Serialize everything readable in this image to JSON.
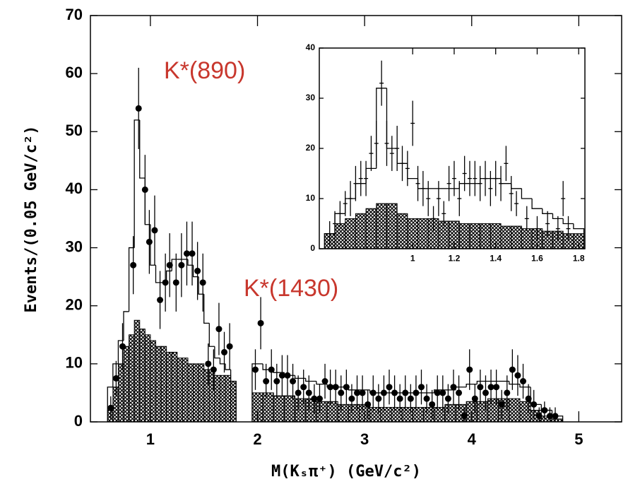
{
  "chart_data": [
    {
      "type": "histogram",
      "x_label": "M(Kₛπ⁺)  (GeV/c²)",
      "y_label": "Events/(0.05 GeV/c²)",
      "annotations": [
        "K*(890)",
        "K*(1430)"
      ],
      "annotation_color": "#c8372d",
      "xlim": [
        0.44,
        5.4
      ],
      "ylim": [
        0,
        70
      ],
      "xticks": [
        1,
        2,
        3,
        4,
        5
      ],
      "yticks": [
        0,
        10,
        20,
        30,
        40,
        50,
        60,
        70
      ],
      "marker": "circle",
      "points": {
        "x": [
          0.63,
          0.68,
          0.74,
          0.84,
          0.89,
          0.95,
          0.99,
          1.04,
          1.09,
          1.14,
          1.18,
          1.24,
          1.29,
          1.34,
          1.39,
          1.44,
          1.49,
          1.54,
          1.59,
          1.64,
          1.69,
          1.74,
          1.98,
          2.03,
          2.08,
          2.13,
          2.18,
          2.23,
          2.28,
          2.33,
          2.38,
          2.43,
          2.48,
          2.53,
          2.58,
          2.63,
          2.68,
          2.73,
          2.78,
          2.83,
          2.88,
          2.93,
          2.98,
          3.03,
          3.08,
          3.13,
          3.18,
          3.23,
          3.28,
          3.33,
          3.38,
          3.43,
          3.48,
          3.53,
          3.58,
          3.63,
          3.68,
          3.73,
          3.78,
          3.83,
          3.88,
          3.93,
          3.98,
          4.03,
          4.08,
          4.13,
          4.18,
          4.23,
          4.28,
          4.33,
          4.38,
          4.43,
          4.48,
          4.53,
          4.58,
          4.63,
          4.68,
          4.73,
          4.78
        ],
        "values": [
          2.4,
          7.5,
          13,
          27,
          54,
          40,
          31,
          33,
          21,
          24,
          27,
          24,
          27,
          29,
          29,
          26,
          24,
          10,
          9,
          16,
          12,
          13,
          9,
          17,
          7,
          9,
          7,
          8,
          8,
          7,
          5,
          6,
          5,
          4,
          4,
          7,
          6,
          6,
          5,
          6,
          4,
          5,
          5,
          3,
          5,
          4,
          5,
          6,
          5,
          4,
          5,
          4,
          5,
          6,
          4,
          3,
          5,
          5,
          4,
          6,
          5,
          1,
          9,
          4,
          6,
          5,
          6,
          6,
          3,
          5,
          9,
          8,
          7,
          4,
          3,
          1,
          2,
          1,
          1
        ],
        "errors": [
          2,
          3,
          4,
          5,
          7,
          6,
          5.5,
          6,
          5,
          5,
          5.5,
          5,
          5.5,
          5.5,
          5.5,
          5,
          5,
          3.5,
          3.5,
          4.5,
          3.5,
          4,
          3.5,
          4.5,
          3,
          3.5,
          3,
          3.5,
          3.5,
          3,
          3,
          3,
          3,
          2.5,
          2.5,
          3,
          3,
          3,
          3,
          3,
          2.5,
          3,
          3,
          2.5,
          3,
          2.5,
          3,
          3,
          3,
          2.5,
          3,
          2.5,
          3,
          3,
          2.5,
          2.5,
          3,
          3,
          2.5,
          3,
          3,
          1.5,
          3.5,
          2.5,
          3,
          3,
          3,
          3,
          2.5,
          3,
          3.5,
          3.5,
          3,
          2.5,
          2.5,
          1.5,
          1.5,
          1.5,
          1.5
        ]
      },
      "bins": [
        0.6,
        0.65,
        0.7,
        0.75,
        0.8,
        0.85,
        0.9,
        0.95,
        1.0,
        1.05,
        1.1,
        1.15,
        1.2,
        1.25,
        1.3,
        1.35,
        1.4,
        1.45,
        1.5,
        1.55,
        1.6,
        1.65,
        1.7,
        1.75,
        1.8,
        1.95,
        2.05,
        2.15,
        2.25,
        2.35,
        2.45,
        2.55,
        2.65,
        2.75,
        2.85,
        2.95,
        3.05,
        3.15,
        3.25,
        3.35,
        3.45,
        3.55,
        3.65,
        3.75,
        3.85,
        3.95,
        4.05,
        4.15,
        4.25,
        4.35,
        4.45,
        4.55,
        4.65,
        4.75,
        4.85
      ],
      "total": [
        6,
        10,
        14,
        19,
        30,
        52,
        42,
        34,
        27,
        24,
        24,
        26,
        28,
        28,
        28,
        27,
        25,
        22,
        17,
        13,
        11,
        10,
        9,
        7,
        null,
        10,
        9,
        8.5,
        8,
        7.5,
        7,
        6.5,
        6,
        6,
        5.5,
        5.5,
        5,
        5,
        5,
        5,
        5,
        5,
        5.5,
        5.5,
        6,
        6.5,
        7,
        7,
        7,
        6.5,
        6,
        3,
        2,
        1
      ],
      "background": [
        2,
        6,
        10,
        13,
        15,
        17.5,
        16,
        15,
        14,
        13,
        13,
        12,
        12,
        11,
        11,
        10,
        10,
        10,
        9,
        9,
        8,
        8,
        8,
        7,
        null,
        5,
        5,
        4.5,
        4.5,
        4,
        4,
        3.5,
        3.5,
        3,
        3,
        3,
        2.5,
        2.5,
        2.5,
        2.5,
        2.5,
        2.5,
        2.5,
        3,
        3,
        3.5,
        3.5,
        4,
        4,
        4,
        3.5,
        2,
        1,
        0.5
      ]
    },
    {
      "type": "histogram",
      "xlim": [
        0.55,
        1.83
      ],
      "ylim": [
        0,
        40
      ],
      "xticks": [
        1,
        1.2,
        1.4,
        1.6,
        1.8
      ],
      "yticks": [
        0,
        10,
        20,
        30,
        40
      ],
      "marker": "cross",
      "points": {
        "x": [
          0.6,
          0.625,
          0.65,
          0.675,
          0.7,
          0.725,
          0.75,
          0.775,
          0.8,
          0.825,
          0.85,
          0.875,
          0.9,
          0.925,
          0.95,
          0.975,
          1.0,
          1.025,
          1.05,
          1.075,
          1.1,
          1.125,
          1.15,
          1.175,
          1.2,
          1.225,
          1.25,
          1.275,
          1.3,
          1.325,
          1.35,
          1.375,
          1.4,
          1.425,
          1.45,
          1.475,
          1.5,
          1.55,
          1.6,
          1.65,
          1.7,
          1.725,
          1.75
        ],
        "values": [
          3,
          5,
          7,
          9,
          10,
          13,
          14,
          14,
          19,
          21,
          33,
          21,
          19,
          20,
          17,
          16,
          25,
          13,
          12,
          10,
          6,
          10,
          7,
          13,
          14,
          10,
          15,
          14,
          14,
          13,
          14,
          12,
          14,
          13,
          17,
          11,
          9,
          6,
          4,
          5,
          4,
          10,
          4
        ],
        "errors": [
          2.5,
          2.5,
          2.5,
          2.5,
          3.5,
          3.5,
          3.5,
          3.5,
          3.5,
          4.5,
          4.5,
          4.5,
          3.5,
          4.5,
          3.5,
          3.5,
          4.5,
          3.5,
          3.5,
          3.5,
          2.5,
          3.5,
          2.5,
          3.5,
          3.5,
          3.5,
          3.5,
          3.5,
          3.5,
          3.5,
          3.5,
          3.5,
          3.5,
          3.5,
          3.5,
          3.5,
          2.5,
          2.5,
          2.5,
          2.5,
          2.5,
          3.5,
          2.5
        ]
      },
      "bins": [
        0.575,
        0.625,
        0.675,
        0.725,
        0.775,
        0.825,
        0.875,
        0.925,
        0.975,
        1.025,
        1.075,
        1.125,
        1.175,
        1.225,
        1.275,
        1.325,
        1.375,
        1.425,
        1.475,
        1.525,
        1.575,
        1.625,
        1.675,
        1.725,
        1.775,
        1.825
      ],
      "total": [
        3,
        7,
        10,
        13,
        16,
        32,
        20,
        17,
        14,
        12,
        12,
        12,
        12,
        13,
        13,
        14,
        14,
        13,
        12,
        10,
        8,
        7,
        6,
        5,
        4
      ],
      "background": [
        3,
        5,
        6,
        7,
        8,
        9,
        9,
        7,
        6,
        6,
        6,
        5.5,
        5.5,
        5,
        5,
        5,
        5,
        4.5,
        4.5,
        4,
        4,
        3.5,
        3.5,
        3,
        3
      ]
    }
  ]
}
